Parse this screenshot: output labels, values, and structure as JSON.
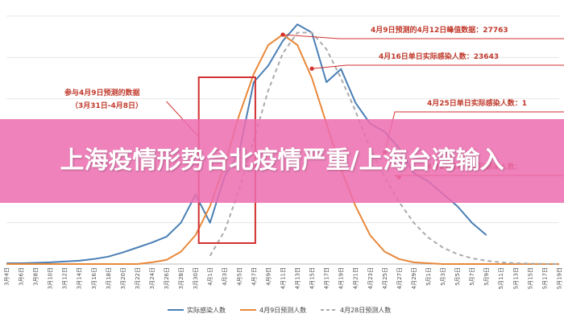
{
  "banner": {
    "title": "上海疫情形势台北疫情严重/上海台湾输入"
  },
  "chart_data": {
    "type": "line",
    "title": "",
    "xlabel": "",
    "ylabel": "",
    "grid": true,
    "legend_position": "bottom",
    "x": [
      "3月4日",
      "3月6日",
      "3月8日",
      "3月10日",
      "3月12日",
      "3月14日",
      "3月16日",
      "3月18日",
      "3月20日",
      "3月22日",
      "3月24日",
      "3月26日",
      "3月28日",
      "3月30日",
      "4月1日",
      "4月3日",
      "4月5日",
      "4月7日",
      "4月9日",
      "4月11日",
      "4月13日",
      "4月15日",
      "4月17日",
      "4月19日",
      "4月21日",
      "4月23日",
      "4月25日",
      "4月27日",
      "4月29日",
      "5月1日",
      "5月3日",
      "5月5日",
      "5月7日",
      "5月9日",
      "5月11日",
      "5月13日",
      "5月15日",
      "5月17日",
      "5月19日"
    ],
    "series": [
      {
        "name": "实际感染人数",
        "color": "#4a7fb5",
        "dash": "",
        "values": [
          100,
          100,
          150,
          200,
          300,
          400,
          600,
          900,
          1400,
          2000,
          2600,
          3300,
          5000,
          8400,
          5000,
          10600,
          13500,
          22000,
          24000,
          27000,
          29000,
          28000,
          22000,
          23600,
          19500,
          17000,
          16000,
          14000,
          11000,
          10000,
          8500,
          7000,
          5000,
          3500,
          null,
          null,
          null,
          null,
          null
        ]
      },
      {
        "name": "4月9日预测人数",
        "color": "#e8883a",
        "dash": "",
        "values": [
          0,
          0,
          0,
          0,
          0,
          0,
          0,
          0,
          0,
          0,
          200,
          500,
          1500,
          3500,
          7000,
          12000,
          18000,
          23000,
          26500,
          27763,
          26500,
          22500,
          17000,
          11500,
          7000,
          3500,
          1500,
          600,
          200,
          100,
          0,
          0,
          0,
          0,
          0,
          0,
          0,
          0,
          0
        ]
      },
      {
        "name": "4月28日预测人数",
        "color": "#aaaaaa",
        "dash": "5,4",
        "values": [
          null,
          null,
          null,
          null,
          null,
          null,
          null,
          null,
          null,
          null,
          null,
          null,
          null,
          null,
          1000,
          4000,
          9000,
          15000,
          21000,
          25500,
          28000,
          28000,
          26000,
          22500,
          18500,
          14000,
          10500,
          7500,
          5000,
          3200,
          2000,
          1200,
          700,
          400,
          200,
          100,
          50,
          20,
          0
        ]
      }
    ],
    "ylim": [
      0,
      30000
    ],
    "annotations": [
      {
        "text": "4月9日预测的4月12日峰值数据：27763",
        "x": "4月11日",
        "y": 27763,
        "series": "4月9日预测人数"
      },
      {
        "text": "4月16日单日实际感染人数：23643",
        "x": "4月15日",
        "y": 23643,
        "series": "实际感染人数"
      },
      {
        "text": "4月25日单日实际感染人数：1",
        "x": "4月25日",
        "y": 13500,
        "series": "实际感染人数"
      },
      {
        "text": "4月27日单日实际感染人数：",
        "x": "4月27日",
        "y": 10500,
        "series": "实际感染人数"
      },
      {
        "text": "参与4月9日预测的数据",
        "x": "4月1日",
        "y": 20000
      },
      {
        "text": "（3月31日-4月8日）",
        "x": "4月1日",
        "y": 18000
      }
    ]
  }
}
